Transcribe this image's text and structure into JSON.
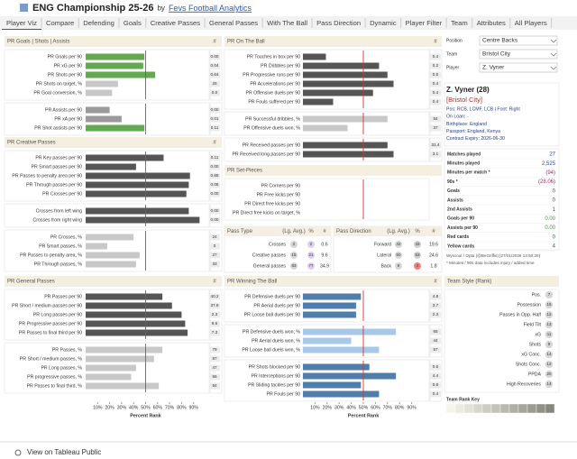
{
  "header": {
    "title": "ENG Championship 25-26",
    "by": "by",
    "author": "Fevs Football Analytics"
  },
  "tabs": [
    "Player Viz",
    "Compare",
    "Defending",
    "Goals",
    "Creative Passes",
    "General Passes",
    "With The Ball",
    "Pass Direction",
    "Dynamic",
    "Player Filter",
    "Team",
    "Attributes",
    "All Players"
  ],
  "reference_rank": 50,
  "axis": {
    "ticks": [
      {
        "value": 10,
        "label": "10%"
      },
      {
        "value": 20,
        "label": "20%"
      },
      {
        "value": 30,
        "label": "30%"
      },
      {
        "value": 40,
        "label": "40%"
      },
      {
        "value": 50,
        "label": "50%"
      },
      {
        "value": 60,
        "label": "60%"
      },
      {
        "value": 70,
        "label": "70%"
      },
      {
        "value": 80,
        "label": "80%"
      },
      {
        "value": 90,
        "label": "90%"
      }
    ],
    "label": "Percent Rank"
  },
  "left_panels": [
    {
      "title": "PR Goals | Shots | Assists",
      "value_header": "#",
      "groups": [
        {
          "color": "#62a94f",
          "rows": [
            {
              "label": "PR Goals per 90",
              "rank": 49,
              "value": "0.00"
            },
            {
              "label": "PR xG per 90",
              "rank": 48,
              "value": "0.04"
            },
            {
              "label": "PR Shots per 90",
              "rank": 58,
              "value": "0.64"
            },
            {
              "label": "PR Shots on target, %",
              "rank": 27,
              "value": "25",
              "color": "#c8c8c8"
            },
            {
              "label": "PR Goal conversion, %",
              "rank": 22,
              "value": "0.0",
              "color": "#c8c8c8"
            }
          ]
        },
        {
          "color": "#62a94f",
          "rows": [
            {
              "label": "PR Assists per 90",
              "rank": 20,
              "value": "0.00",
              "color": "#9a9a9a"
            },
            {
              "label": "PR xA per 90",
              "rank": 30,
              "value": "0.01",
              "color": "#9a9a9a"
            },
            {
              "label": "PR Shot assists per 90",
              "rank": 49,
              "value": "0.11"
            }
          ]
        }
      ]
    },
    {
      "title": "PR Creative Passes",
      "value_header": "#",
      "groups": [
        {
          "color": "#555555",
          "rows": [
            {
              "label": "PR Key passes per 90",
              "rank": 65,
              "value": "0.11"
            },
            {
              "label": "PR Smart passes per 90",
              "rank": 42,
              "value": "0.00"
            },
            {
              "label": "PR Passes to penalty area per 90",
              "rank": 87,
              "value": "0.88"
            },
            {
              "label": "PR Through passes per 90",
              "rank": 86,
              "value": "0.05"
            },
            {
              "label": "PR Crosses per 90",
              "rank": 84,
              "value": "0.00"
            }
          ]
        },
        {
          "color": "#555555",
          "rows": [
            {
              "label": "Crosses from left wing",
              "rank": 86,
              "value": "0.00"
            },
            {
              "label": "Crosses from right wing",
              "rank": 95,
              "value": "0.00"
            }
          ]
        },
        {
          "color": "#c8c8c8",
          "rows": [
            {
              "label": "PR Crosses, %",
              "rank": 40,
              "value": "24"
            },
            {
              "label": "PR Smart passes, %",
              "rank": 18,
              "value": "0"
            },
            {
              "label": "PR Passes to penalty area, %",
              "rank": 45,
              "value": "27"
            },
            {
              "label": "PR Through passes, %",
              "rank": 42,
              "value": "33"
            }
          ]
        }
      ]
    },
    {
      "title": "PR General Passes",
      "value_header": "#",
      "groups": [
        {
          "color": "#555555",
          "rows": [
            {
              "label": "PR Passes per 90",
              "rank": 64,
              "value": "40.2"
            },
            {
              "label": "PR Short / medium passes per 90",
              "rank": 72,
              "value": "37.9"
            },
            {
              "label": "PR Long passes per 90",
              "rank": 80,
              "value": "2.3"
            },
            {
              "label": "PR Progressive passes per 90",
              "rank": 83,
              "value": "9.6"
            },
            {
              "label": "PR Passes to final third per 90",
              "rank": 85,
              "value": "7.3"
            }
          ]
        },
        {
          "color": "#c8c8c8",
          "rows": [
            {
              "label": "PR Passes, %",
              "rank": 64,
              "value": "79"
            },
            {
              "label": "PR Short / medium passes, %",
              "rank": 57,
              "value": "87"
            },
            {
              "label": "PR Long passes, %",
              "rank": 42,
              "value": "47"
            },
            {
              "label": "PR progressive passes, %",
              "rank": 38,
              "value": "66"
            },
            {
              "label": "PR Passes to final third, %",
              "rank": 61,
              "value": "84"
            }
          ]
        }
      ]
    }
  ],
  "middle_panels": [
    {
      "title": "PR On The Ball",
      "value_header": "#",
      "groups": [
        {
          "color": "#555555",
          "rows": [
            {
              "label": "PR Touches in box per 90",
              "rank": 19,
              "value": "0.4"
            },
            {
              "label": "PR Dribbles per 90",
              "rank": 63,
              "value": "0.2"
            },
            {
              "label": "PR Progressive runs per 90",
              "rank": 70,
              "value": "0.5"
            },
            {
              "label": "PR Accelerations per 90",
              "rank": 75,
              "value": "0.4"
            },
            {
              "label": "PR Offensive duels per 90",
              "rank": 58,
              "value": "0.4"
            },
            {
              "label": "PR Fouls suffered per 90",
              "rank": 25,
              "value": "0.4"
            }
          ]
        },
        {
          "color": "#c8c8c8",
          "rows": [
            {
              "label": "PR Successful dribbles, %",
              "rank": 70,
              "value": "54"
            },
            {
              "label": "PR Offensive duels won, %",
              "rank": 37,
              "value": "37"
            }
          ]
        },
        {
          "color": "#555555",
          "rows": [
            {
              "label": "PR Received passes per 90",
              "rank": 70,
              "value": "31.4"
            },
            {
              "label": "PR Received long passes per 90",
              "rank": 75,
              "value": "3.1"
            }
          ]
        }
      ]
    },
    {
      "title": "PR Set-Pieces",
      "groups": [
        {
          "color": "#555555",
          "rows": [
            {
              "label": "PR Corners per 90"
            },
            {
              "label": "PR Free kicks per 90"
            },
            {
              "label": "PR Direct free kicks per 90"
            },
            {
              "label": "PR Direct free kicks on target, %"
            }
          ]
        }
      ]
    },
    {
      "title": "PR Winning The Ball",
      "value_header": "#",
      "groups": [
        {
          "color": "#4f7eac",
          "rows": [
            {
              "label": "PR Defensive duels per 90",
              "rank": 48,
              "value": "4.8"
            },
            {
              "label": "PR Aerial duels per 90",
              "rank": 44,
              "value": "3.7"
            },
            {
              "label": "PR Loose ball duels per 90",
              "rank": 44,
              "value": "2.3"
            }
          ]
        },
        {
          "color": "#a8c8e8",
          "rows": [
            {
              "label": "PR Defensive duels won, %",
              "rank": 77,
              "value": "65"
            },
            {
              "label": "PR Aerial duels won, %",
              "rank": 40,
              "value": "44"
            },
            {
              "label": "PR Loose ball duels won, %",
              "rank": 63,
              "value": "57"
            }
          ]
        },
        {
          "color": "#4f7eac",
          "rows": [
            {
              "label": "PR Shots blocked per 90",
              "rank": 55,
              "value": "0.5"
            },
            {
              "label": "PR Interceptions per 90",
              "rank": 77,
              "value": "4.4"
            },
            {
              "label": "PR Sliding tackles per 90",
              "rank": 48,
              "value": "0.6"
            },
            {
              "label": "PR Fouls per 90",
              "rank": 63,
              "value": "0.4"
            }
          ]
        }
      ]
    }
  ],
  "pass_type": {
    "title": "Pass Type",
    "lg_header": "(Lg. Avg.)",
    "pct_header": "%",
    "num_header": "#",
    "rows": [
      {
        "label": "Crosses",
        "lg": 2,
        "pct": 2,
        "num": "0.6",
        "color": "#ddd0ec"
      },
      {
        "label": "Creative passes",
        "lg": 15,
        "pct": 21,
        "num": "9.6",
        "color": "#ddd0ec"
      },
      {
        "label": "General passes",
        "lg": 83,
        "pct": 77,
        "num": "34.9",
        "color": "#ddd0ec"
      }
    ]
  },
  "pass_direction": {
    "title": "Pass Direction",
    "lg_header": "(Lg. Avg.)",
    "pct_header": "%",
    "num_header": "#",
    "rows": [
      {
        "label": "Forward",
        "lg": 42,
        "pct": 43,
        "num": "19.6",
        "color": "#d0d0d0"
      },
      {
        "label": "Lateral",
        "lg": 50,
        "pct": 53,
        "num": "24.6",
        "color": "#d0d0d0"
      },
      {
        "label": "Back",
        "lg": 9,
        "pct": 4,
        "num": "1.8",
        "color": "#f08080"
      }
    ]
  },
  "filters": [
    {
      "label": "Position",
      "value": "Centre Backs"
    },
    {
      "label": "Team",
      "value": "Bristol City"
    },
    {
      "label": "Player",
      "value": "Z. Vyner"
    }
  ],
  "profile": {
    "name": "Z. Vyner (28)",
    "team": "[Bristol City]",
    "lines": [
      "Pos: RCB, LCMF, LCB | Foot: Right",
      "On Loan: -",
      "Birthplace: England",
      "Passport: England, Kenya",
      "Contract Expiry: 2026-06-30"
    ]
  },
  "stats": [
    {
      "label": "Matches played",
      "value": "27",
      "color": "#3050a0"
    },
    {
      "label": "Minutes played",
      "value": "2,525",
      "color": "#3050a0"
    },
    {
      "label": "Minutes per match *",
      "value": "(94)",
      "color": "#a0306a"
    },
    {
      "label": "90s *",
      "value": "(28.06)",
      "color": "#a0306a"
    },
    {
      "label": "Goals",
      "value": "0",
      "color": "#3050a0"
    },
    {
      "label": "Assists",
      "value": "0",
      "color": "#3050a0"
    },
    {
      "label": "2nd Assists",
      "value": "1",
      "color": "#3050a0"
    },
    {
      "label": "Goals per 90",
      "value": "0.00",
      "color": "#3a9a3a"
    },
    {
      "label": "Assists per 90",
      "value": "0.00",
      "color": "#3a9a3a"
    },
    {
      "label": "Red cards",
      "value": "0",
      "color": "#3050a0"
    },
    {
      "label": "Yellow cards",
      "value": "4",
      "color": "#3050a0"
    }
  ],
  "notes": [
    "Wyscout / Opta (@BeGriffis) [27/01/2026 13:50:28]",
    "* Minutes / 90s data includes injury / added time"
  ],
  "team_style": {
    "title": "Team Style (Rank)",
    "rows": [
      {
        "label": "Pos.",
        "rank": 7
      },
      {
        "label": "Possession",
        "rank": 15
      },
      {
        "label": "Passes in Opp. Half",
        "rank": 12
      },
      {
        "label": "Field Tilt",
        "rank": 13
      },
      {
        "label": "xG",
        "rank": 11
      },
      {
        "label": "Shots",
        "rank": 9
      },
      {
        "label": "xG Conc.",
        "rank": 14
      },
      {
        "label": "Shots Conc.",
        "rank": 12
      },
      {
        "label": "PPDA",
        "rank": 20
      },
      {
        "label": "High Recoveries",
        "rank": 14
      }
    ],
    "key": "Team Rank Key"
  },
  "footer": "View on Tableau Public"
}
